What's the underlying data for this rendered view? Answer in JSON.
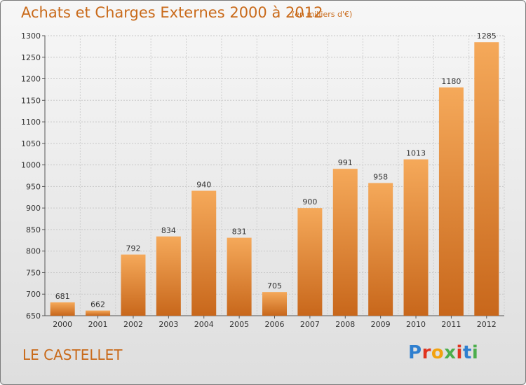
{
  "title": "Achats et Charges Externes 2000 à 2012",
  "subtitle": "(en milliers d'€)",
  "commune": "LE CASTELLET",
  "logo": "Proxiti",
  "colors": {
    "bar_light": "#f5a95a",
    "bar_dark": "#c8671b",
    "title": "#c96a1a",
    "grid": "#c8c8c8",
    "axis_text": "#333333"
  },
  "chart_data": {
    "type": "bar",
    "categories": [
      "2000",
      "2001",
      "2002",
      "2003",
      "2004",
      "2005",
      "2006",
      "2007",
      "2008",
      "2009",
      "2010",
      "2011",
      "2012"
    ],
    "values": [
      681,
      662,
      792,
      834,
      940,
      831,
      705,
      900,
      991,
      958,
      1013,
      1180,
      1285
    ],
    "title": "Achats et Charges Externes 2000 à 2012",
    "subtitle": "(en milliers d'€)",
    "xlabel": "",
    "ylabel": "",
    "ylim": [
      650,
      1300
    ],
    "yticks": [
      650,
      700,
      750,
      800,
      850,
      900,
      950,
      1000,
      1050,
      1100,
      1150,
      1200,
      1250,
      1300
    ],
    "grid": true,
    "data_labels": true
  }
}
